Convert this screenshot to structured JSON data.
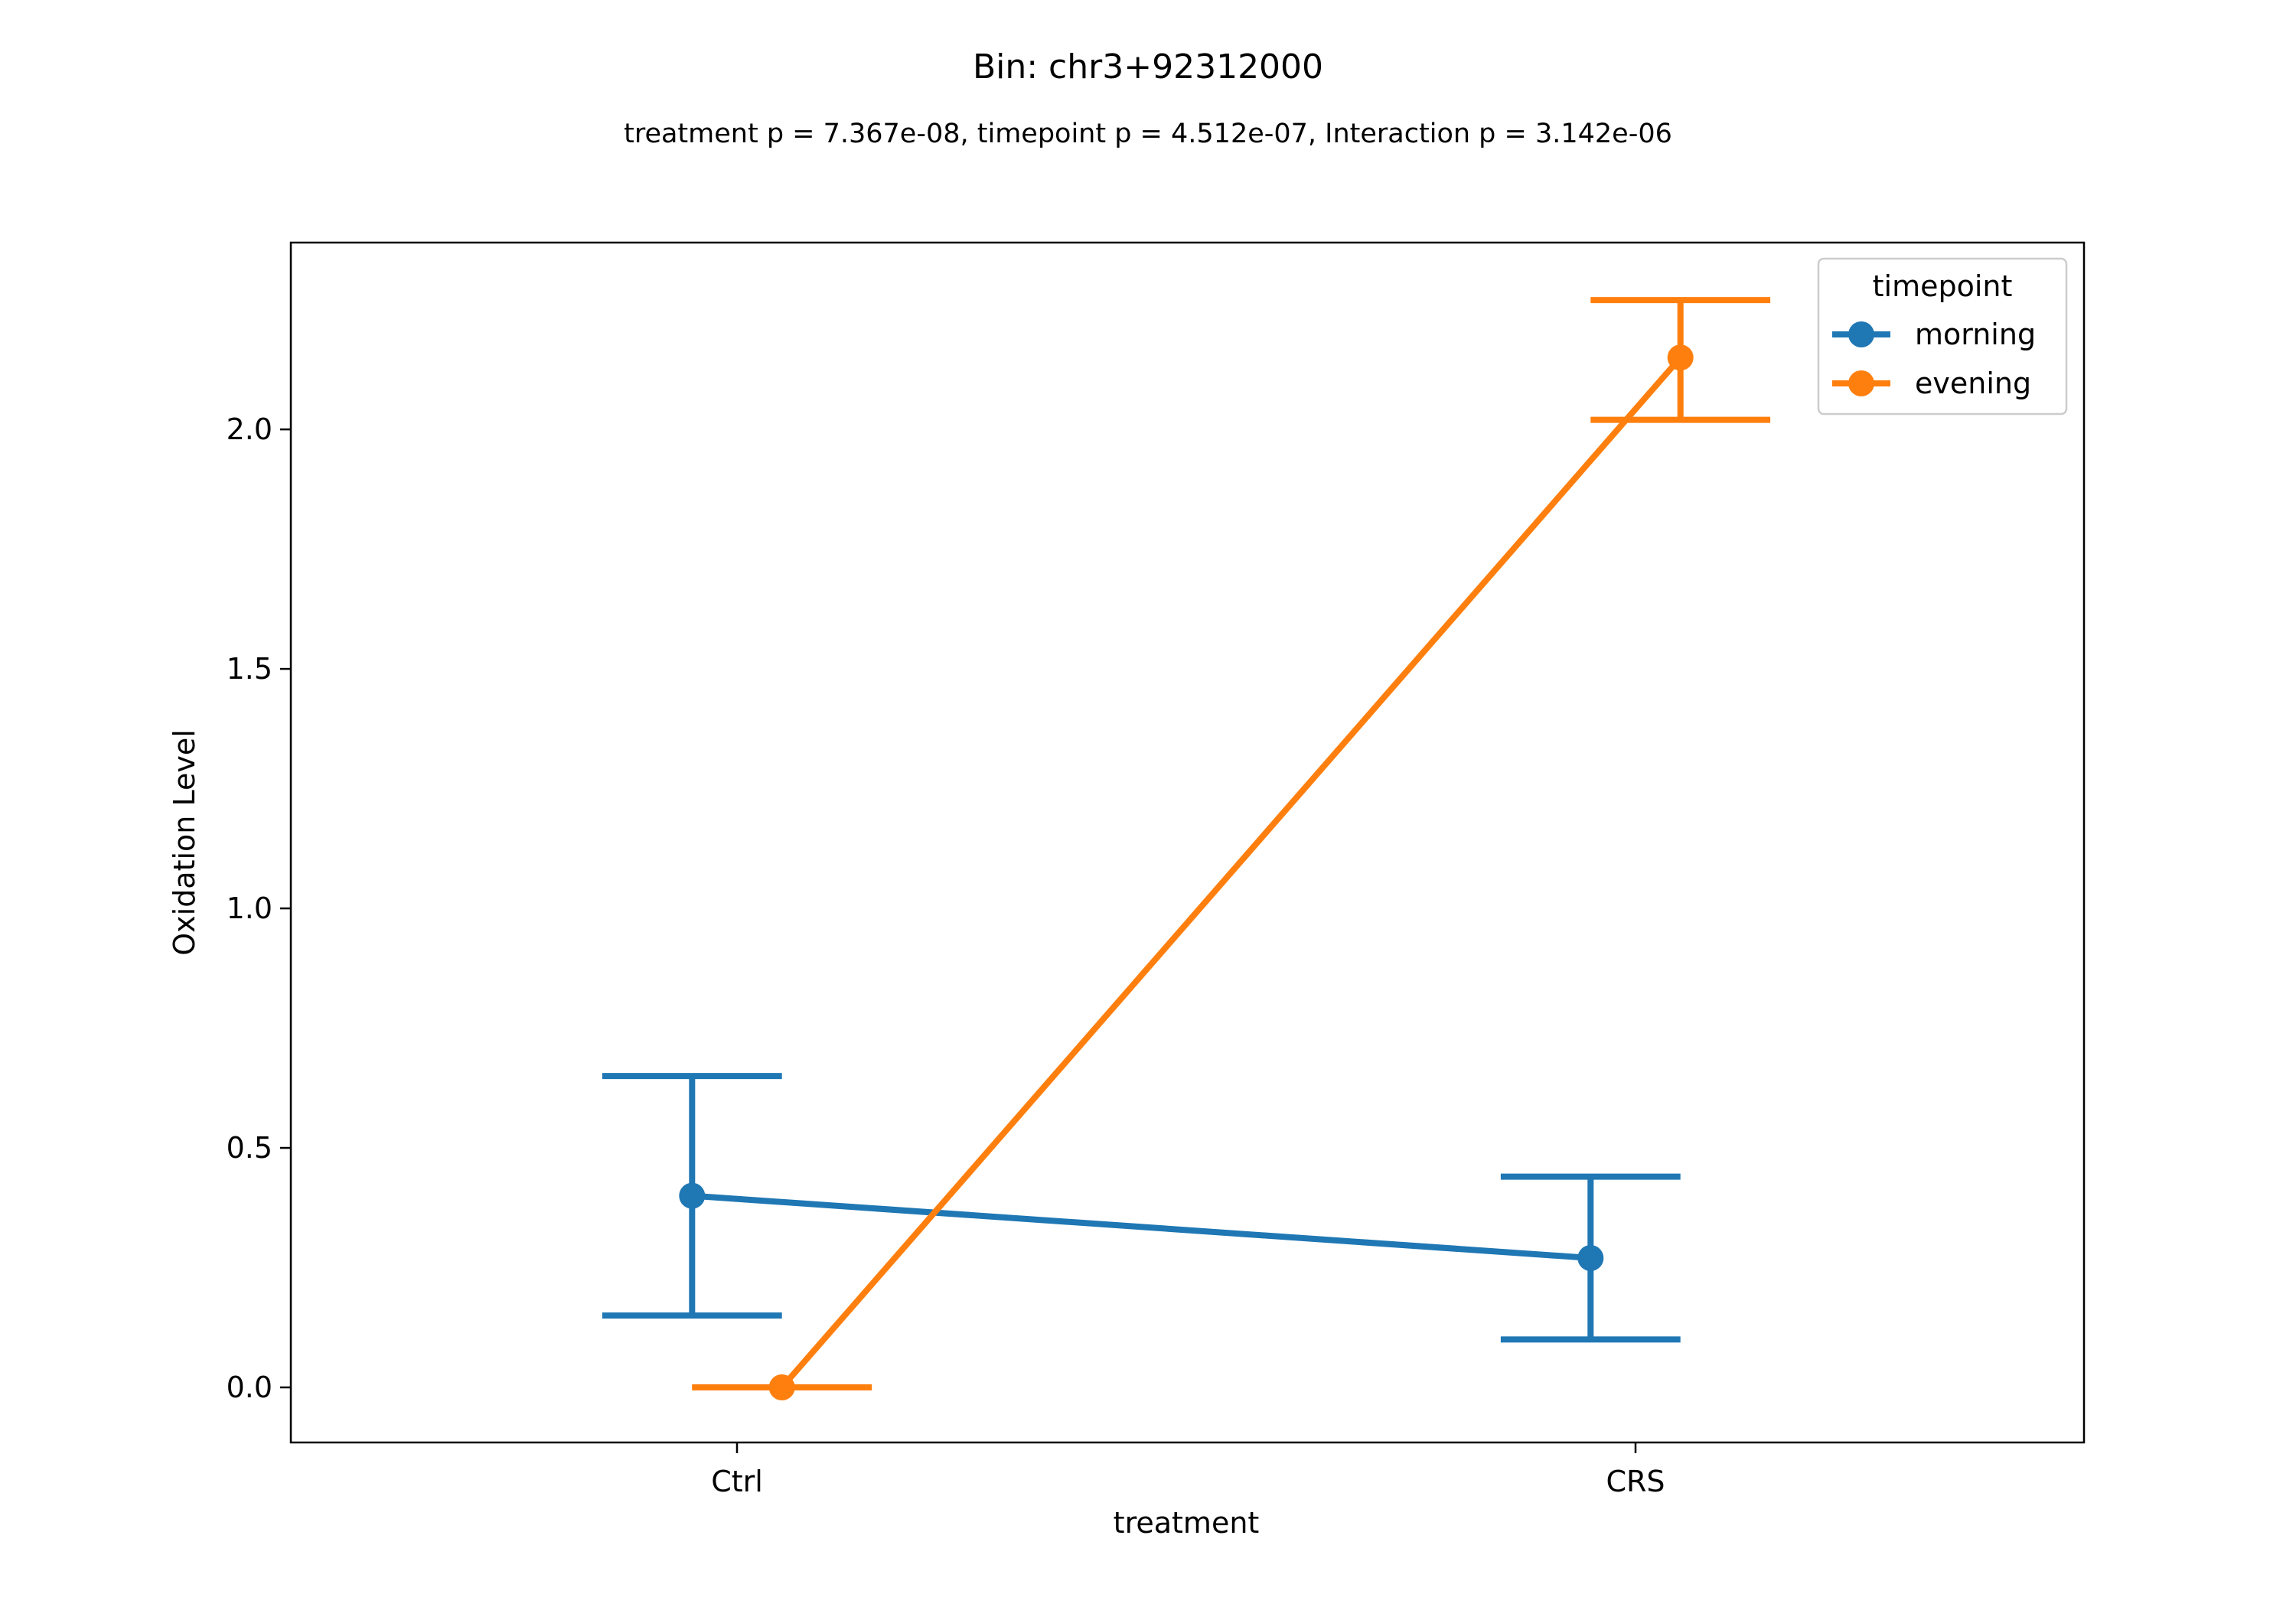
{
  "chart_data": {
    "type": "line",
    "title": "Bin: chr3+92312000",
    "subtitle": "treatment p = 7.367e-08, timepoint p = 4.512e-07, Interaction p = 3.142e-06",
    "xlabel": "treatment",
    "ylabel": "Oxidation Level",
    "categories": [
      "Ctrl",
      "CRS"
    ],
    "ylim": [
      -0.115,
      2.39
    ],
    "yticks": [
      0.0,
      0.5,
      1.0,
      1.5,
      2.0
    ],
    "ytick_labels": [
      "0.0",
      "0.5",
      "1.0",
      "1.5",
      "2.0"
    ],
    "grid": false,
    "legend": {
      "title": "timepoint",
      "placement": "top-right"
    },
    "series": [
      {
        "name": "morning",
        "color": "#1f77b4",
        "values": [
          0.4,
          0.27
        ],
        "err_low": [
          0.15,
          0.1
        ],
        "err_high": [
          0.65,
          0.44
        ]
      },
      {
        "name": "evening",
        "color": "#ff7f0e",
        "values": [
          0.0,
          2.15
        ],
        "err_low": [
          0.0,
          2.02
        ],
        "err_high": [
          0.0,
          2.27
        ]
      }
    ]
  }
}
